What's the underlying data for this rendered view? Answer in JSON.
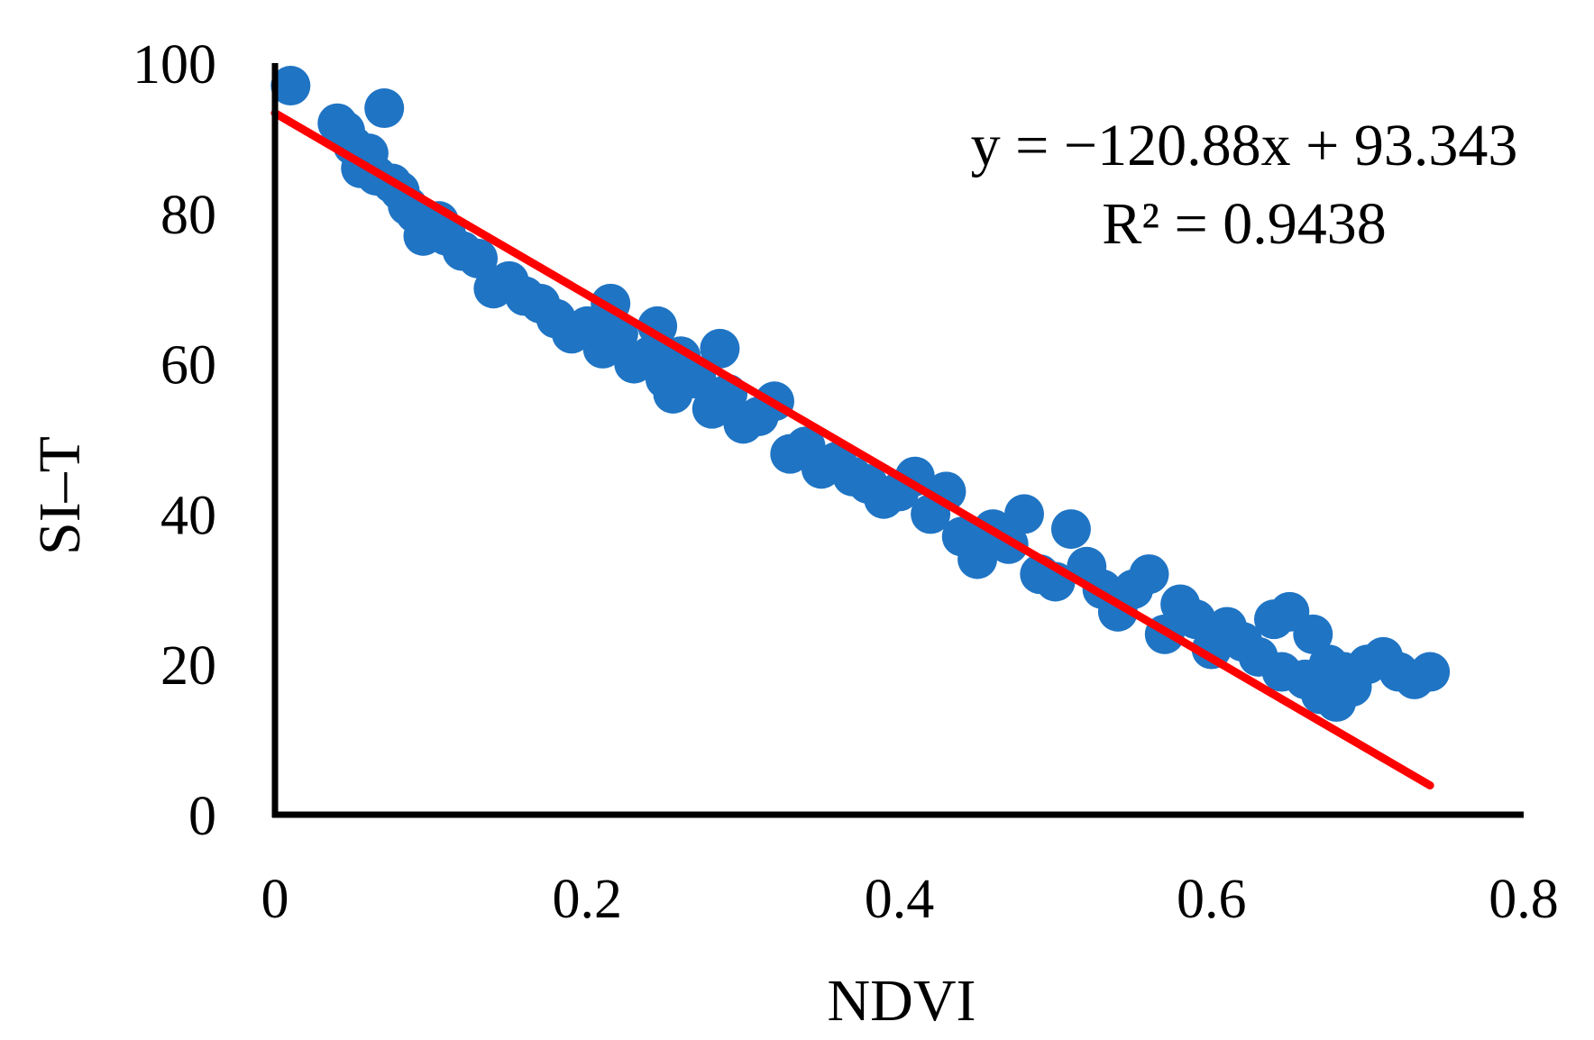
{
  "chart_data": {
    "type": "scatter",
    "title": "",
    "xlabel": "NDVI",
    "ylabel": "SI–T",
    "xlim": [
      0,
      0.8
    ],
    "ylim": [
      0,
      100
    ],
    "x_ticks": [
      0,
      0.2,
      0.4,
      0.6,
      0.8
    ],
    "x_tick_labels": [
      "0",
      "0.2",
      "0.4",
      "0.6",
      "0.8"
    ],
    "y_ticks": [
      0,
      20,
      40,
      60,
      80,
      100
    ],
    "y_tick_labels": [
      "0",
      "20",
      "40",
      "60",
      "80",
      "100"
    ],
    "grid": false,
    "legend": false,
    "colors": {
      "points": "#1f74c4",
      "trendline": "#ff0000",
      "axes": "#000000"
    },
    "series": [
      {
        "name": "SI–T",
        "x": [
          0.01,
          0.04,
          0.045,
          0.05,
          0.055,
          0.06,
          0.065,
          0.07,
          0.075,
          0.08,
          0.085,
          0.09,
          0.095,
          0.1,
          0.105,
          0.11,
          0.12,
          0.13,
          0.14,
          0.15,
          0.16,
          0.17,
          0.18,
          0.19,
          0.2,
          0.21,
          0.215,
          0.22,
          0.23,
          0.24,
          0.245,
          0.25,
          0.255,
          0.26,
          0.27,
          0.28,
          0.285,
          0.29,
          0.3,
          0.31,
          0.32,
          0.33,
          0.34,
          0.35,
          0.36,
          0.37,
          0.38,
          0.39,
          0.4,
          0.41,
          0.42,
          0.43,
          0.44,
          0.45,
          0.46,
          0.47,
          0.48,
          0.49,
          0.5,
          0.51,
          0.52,
          0.53,
          0.54,
          0.55,
          0.56,
          0.57,
          0.58,
          0.59,
          0.6,
          0.61,
          0.62,
          0.63,
          0.64,
          0.645,
          0.65,
          0.66,
          0.665,
          0.67,
          0.675,
          0.68,
          0.685,
          0.69,
          0.7,
          0.71,
          0.72,
          0.73,
          0.74
        ],
        "y": [
          97,
          92,
          91,
          89,
          86,
          88,
          85,
          94,
          84,
          83,
          81,
          80,
          77,
          78,
          79,
          77,
          75,
          74,
          70,
          71,
          69,
          68,
          66,
          64,
          65,
          62,
          68,
          64,
          60,
          61,
          65,
          58,
          56,
          61,
          58,
          54,
          62,
          56,
          52,
          53,
          55,
          48,
          49,
          46,
          47,
          45,
          44,
          42,
          43,
          45,
          40,
          43,
          37,
          34,
          38,
          36,
          40,
          32,
          31,
          38,
          33,
          30,
          27,
          30,
          32,
          24,
          28,
          26,
          22,
          25,
          23,
          21,
          26,
          19,
          27,
          18,
          24,
          16,
          20,
          15,
          19,
          17,
          20,
          21,
          19,
          18,
          19
        ]
      }
    ],
    "trendline": {
      "slope": -120.88,
      "intercept": 93.343,
      "x_range": [
        0,
        0.74
      ]
    },
    "annotations": {
      "equation": "y = −120.88x + 93.343",
      "r_squared": "R² = 0.9438"
    }
  }
}
